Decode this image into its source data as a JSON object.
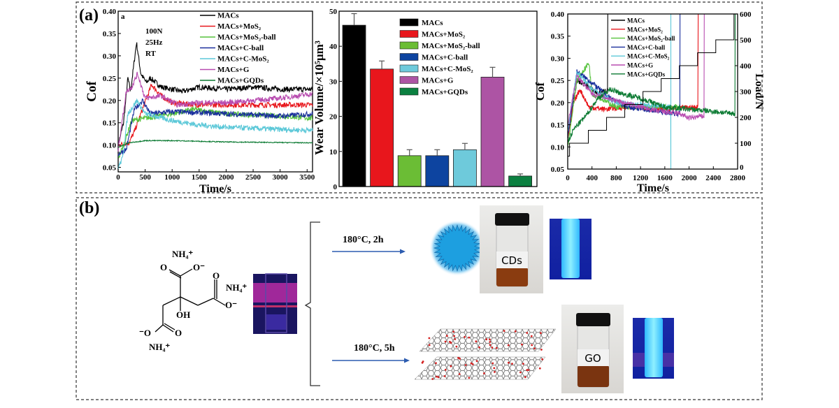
{
  "panels": {
    "a_label": "(a)",
    "b_label": "(b)"
  },
  "colors": {
    "MACs": "#000000",
    "MACs+MoS₂": "#e8161c",
    "MACs+MoS₂-ball": "#55c23c",
    "MACs+C-ball": "#1a2f9c",
    "MACs+C-MoS₂": "#5cc8d8",
    "MACs+G": "#b84cb0",
    "MACs+GQDs": "#0b7a32"
  },
  "chart_data": [
    {
      "type": "line",
      "corner_label": "a",
      "annotations": [
        "100N",
        "25Hz",
        "RT"
      ],
      "xlabel": "Time/s",
      "ylabel": "Cof",
      "xlim": [
        0,
        3600
      ],
      "ylim": [
        0.04,
        0.4
      ],
      "xticks": [
        0,
        500,
        1000,
        1500,
        2000,
        2500,
        3000,
        3500
      ],
      "yticks": [
        "0.05",
        "0.10",
        "0.15",
        "0.20",
        "0.25",
        "0.30",
        "0.35",
        "0.40"
      ],
      "legend": "top-right",
      "series": [
        {
          "name": "MACs",
          "points": [
            [
              0,
              0.1
            ],
            [
              100,
              0.15
            ],
            [
              180,
              0.25
            ],
            [
              230,
              0.22
            ],
            [
              340,
              0.33
            ],
            [
              420,
              0.26
            ],
            [
              520,
              0.24
            ],
            [
              600,
              0.25
            ],
            [
              800,
              0.23
            ],
            [
              1200,
              0.22
            ],
            [
              1500,
              0.23
            ],
            [
              2000,
              0.225
            ],
            [
              2500,
              0.23
            ],
            [
              3000,
              0.225
            ],
            [
              3600,
              0.225
            ]
          ]
        },
        {
          "name": "MACs+MoS₂",
          "points": [
            [
              0,
              0.1
            ],
            [
              200,
              0.105
            ],
            [
              300,
              0.13
            ],
            [
              450,
              0.18
            ],
            [
              620,
              0.235
            ],
            [
              800,
              0.21
            ],
            [
              1000,
              0.195
            ],
            [
              1500,
              0.19
            ],
            [
              2000,
              0.19
            ],
            [
              3000,
              0.19
            ],
            [
              3600,
              0.19
            ]
          ]
        },
        {
          "name": "MACs+MoS₂-ball",
          "points": [
            [
              0,
              0.07
            ],
            [
              100,
              0.1
            ],
            [
              250,
              0.155
            ],
            [
              500,
              0.16
            ],
            [
              1000,
              0.17
            ],
            [
              1400,
              0.18
            ],
            [
              2000,
              0.17
            ],
            [
              3000,
              0.165
            ],
            [
              3600,
              0.16
            ]
          ]
        },
        {
          "name": "MACs+C-ball",
          "points": [
            [
              0,
              0.08
            ],
            [
              150,
              0.09
            ],
            [
              300,
              0.18
            ],
            [
              450,
              0.2
            ],
            [
              600,
              0.17
            ],
            [
              1000,
              0.175
            ],
            [
              2000,
              0.17
            ],
            [
              3000,
              0.165
            ],
            [
              3600,
              0.17
            ]
          ]
        },
        {
          "name": "MACs+C-MoS₂",
          "points": [
            [
              0,
              0.05
            ],
            [
              80,
              0.07
            ],
            [
              180,
              0.17
            ],
            [
              350,
              0.2
            ],
            [
              500,
              0.17
            ],
            [
              1000,
              0.155
            ],
            [
              1500,
              0.145
            ],
            [
              2000,
              0.14
            ],
            [
              3000,
              0.135
            ],
            [
              3600,
              0.133
            ]
          ]
        },
        {
          "name": "MACs+G",
          "points": [
            [
              0,
              0.09
            ],
            [
              150,
              0.22
            ],
            [
              250,
              0.23
            ],
            [
              360,
              0.26
            ],
            [
              500,
              0.205
            ],
            [
              800,
              0.21
            ],
            [
              1100,
              0.19
            ],
            [
              1500,
              0.195
            ],
            [
              2000,
              0.195
            ],
            [
              3000,
              0.205
            ],
            [
              3600,
              0.215
            ]
          ]
        },
        {
          "name": "MACs+GQDs",
          "points": [
            [
              0,
              0.095
            ],
            [
              200,
              0.105
            ],
            [
              500,
              0.11
            ],
            [
              1000,
              0.11
            ],
            [
              2000,
              0.107
            ],
            [
              3600,
              0.105
            ]
          ]
        }
      ]
    },
    {
      "type": "bar",
      "ylabel": "Wear Volume/×10⁵μm³",
      "ylim": [
        0,
        50
      ],
      "yticks": [
        0,
        10,
        20,
        30,
        40,
        50
      ],
      "legend": "top-right",
      "categories": [
        "MACs",
        "MACs+MoS₂",
        "MACs+MoS₂-ball",
        "MACs+C-ball",
        "MACs+C-MoS₂",
        "MACs+G",
        "MACs+GQDs"
      ],
      "values": [
        46,
        33.5,
        8.8,
        8.8,
        10.5,
        31.2,
        3.0
      ],
      "errors": [
        3.3,
        2.3,
        1.7,
        1.7,
        1.8,
        2.8,
        0.6
      ],
      "bar_colors": [
        "#000000",
        "#e8161c",
        "#6bbd35",
        "#0d44a0",
        "#6ecadb",
        "#ad54a4",
        "#0b8040"
      ]
    },
    {
      "type": "line",
      "xlabel": "Time/s",
      "ylabel": "Cof",
      "y2label": "Load/N",
      "xlim": [
        0,
        2800
      ],
      "ylim": [
        0.05,
        0.4
      ],
      "y2lim": [
        0,
        600
      ],
      "xticks": [
        0,
        400,
        800,
        1200,
        1600,
        2000,
        2400,
        2800
      ],
      "yticks": [
        "0.05",
        "0.10",
        "0.15",
        "0.20",
        "0.25",
        "0.30",
        "0.35",
        "0.40"
      ],
      "y2ticks": [
        0,
        100,
        200,
        300,
        400,
        500,
        600
      ],
      "legend": "top-center",
      "series": [
        {
          "name": "MACs",
          "points": [
            [
              0,
              0.12
            ],
            [
              150,
              0.25
            ],
            [
              300,
              0.24
            ],
            [
              500,
              0.22
            ],
            [
              660,
              0.23
            ],
            [
              660,
              0.4
            ]
          ]
        },
        {
          "name": "MACs+MoS₂",
          "points": [
            [
              0,
              0.12
            ],
            [
              100,
              0.2
            ],
            [
              200,
              0.23
            ],
            [
              350,
              0.19
            ],
            [
              600,
              0.185
            ],
            [
              1000,
              0.19
            ],
            [
              1500,
              0.185
            ],
            [
              2150,
              0.19
            ],
            [
              2150,
              0.4
            ]
          ]
        },
        {
          "name": "MACs+MoS₂-ball",
          "points": [
            [
              0,
              0.1
            ],
            [
              150,
              0.25
            ],
            [
              350,
              0.29
            ],
            [
              400,
              0.22
            ],
            [
              800,
              0.19
            ],
            [
              1300,
              0.19
            ],
            [
              1850,
              0.19
            ]
          ]
        },
        {
          "name": "MACs+C-ball",
          "points": [
            [
              0,
              0.12
            ],
            [
              150,
              0.27
            ],
            [
              350,
              0.25
            ],
            [
              700,
              0.21
            ],
            [
              1000,
              0.19
            ],
            [
              1500,
              0.18
            ],
            [
              1850,
              0.175
            ],
            [
              1850,
              0.4
            ]
          ]
        },
        {
          "name": "MACs+C-MoS₂",
          "points": [
            [
              0,
              0.14
            ],
            [
              150,
              0.27
            ],
            [
              400,
              0.23
            ],
            [
              800,
              0.2
            ],
            [
              1200,
              0.195
            ],
            [
              1700,
              0.19
            ],
            [
              1700,
              0.05
            ],
            [
              1700,
              0.4
            ]
          ]
        },
        {
          "name": "MACs+G",
          "points": [
            [
              0,
              0.15
            ],
            [
              150,
              0.26
            ],
            [
              400,
              0.22
            ],
            [
              900,
              0.2
            ],
            [
              1500,
              0.18
            ],
            [
              1850,
              0.175
            ],
            [
              2000,
              0.165
            ],
            [
              2250,
              0.17
            ],
            [
              2250,
              0.4
            ]
          ]
        },
        {
          "name": "MACs+GQDs",
          "points": [
            [
              0,
              0.11
            ],
            [
              100,
              0.14
            ],
            [
              300,
              0.17
            ],
            [
              500,
              0.21
            ],
            [
              700,
              0.23
            ],
            [
              900,
              0.22
            ],
            [
              1200,
              0.21
            ],
            [
              1600,
              0.19
            ],
            [
              2000,
              0.185
            ],
            [
              2400,
              0.18
            ],
            [
              2760,
              0.175
            ],
            [
              2760,
              0.4
            ]
          ]
        }
      ],
      "load": [
        [
          0,
          50
        ],
        [
          30,
          100
        ],
        [
          340,
          150
        ],
        [
          640,
          200
        ],
        [
          940,
          250
        ],
        [
          1240,
          300
        ],
        [
          1540,
          350
        ],
        [
          1840,
          400
        ],
        [
          2140,
          450
        ],
        [
          2440,
          500
        ],
        [
          2740,
          600
        ]
      ]
    }
  ],
  "scheme": {
    "nh4": "NH₄⁺",
    "o": "O",
    "o_minus": "O⁻",
    "o_minus_left": "⁻O",
    "oh": "OH",
    "condition_top": "180°C, 2h",
    "condition_bottom": "180°C, 5h",
    "vial_top_label": "CDs",
    "vial_bottom_label": "GO"
  }
}
